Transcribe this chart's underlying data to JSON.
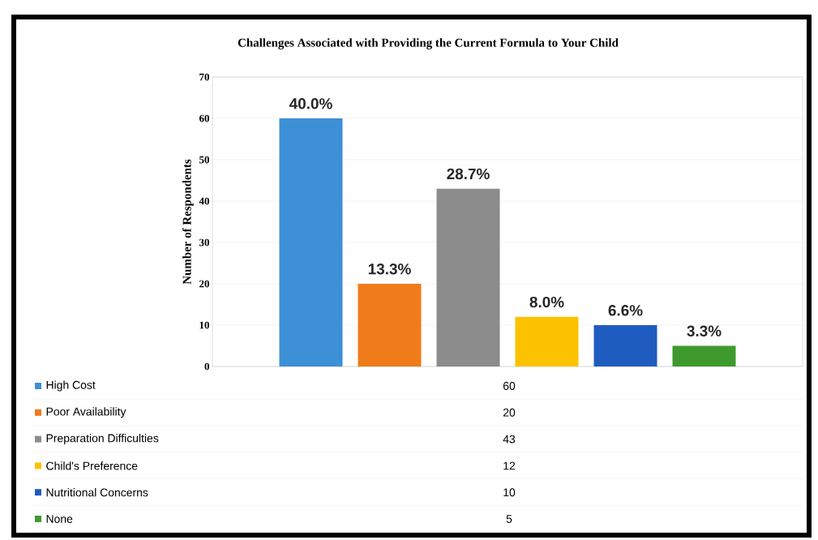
{
  "chart_data": {
    "type": "bar",
    "title": "Challenges Associated with Providing the Current Formula to Your Child",
    "ylabel": "Number of Respondents",
    "categories": [
      null
    ],
    "series": [
      {
        "name": "High Cost",
        "color": "#3d8fd6",
        "values": [
          60
        ]
      },
      {
        "name": "Poor Availability",
        "color": "#f07b1a",
        "values": [
          20
        ]
      },
      {
        "name": "Preparation Difficulties",
        "color": "#8c8c8c",
        "values": [
          43
        ]
      },
      {
        "name": "Child's Preference",
        "color": "#fcc200",
        "values": [
          12
        ]
      },
      {
        "name": "Nutritional Concerns",
        "color": "#1f5cc0",
        "values": [
          10
        ]
      },
      {
        "name": "None",
        "color": "#3f9a2e",
        "values": [
          5
        ]
      }
    ],
    "annotations": [
      {
        "text": "40.0%",
        "y": 60
      },
      {
        "text": "13.3%",
        "y": 20
      },
      {
        "text": "28.7%",
        "y": 43
      },
      {
        "text": "8.0%",
        "y": 12
      },
      {
        "text": "6.6%",
        "y": 10
      },
      {
        "text": "3.3%",
        "y": 5
      },
      "60",
      "20",
      "43",
      "12",
      "10",
      "5"
    ],
    "ylim": [
      0,
      70
    ],
    "yticks": [
      0,
      10,
      20,
      30,
      40,
      50,
      60,
      70
    ],
    "grid": "y",
    "legend": "bottom"
  }
}
